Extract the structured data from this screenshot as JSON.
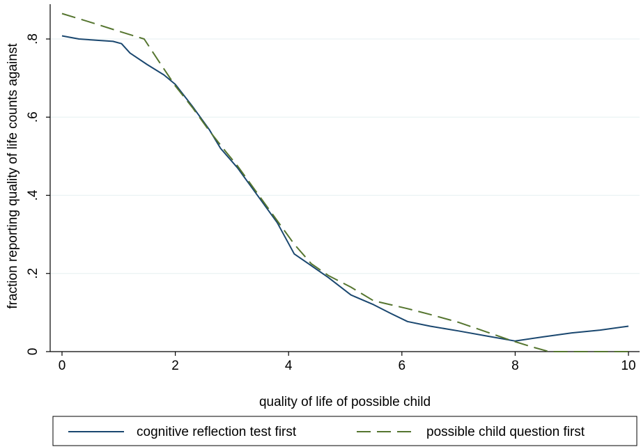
{
  "chart_data": {
    "type": "line",
    "title": "",
    "xlabel": "quality of life of possible child",
    "ylabel": "fraction reporting quality of life counts against",
    "xlim": [
      0,
      10
    ],
    "ylim": [
      0,
      0.8
    ],
    "xticks": [
      0,
      2,
      4,
      6,
      8,
      10
    ],
    "xtick_labels": [
      "0",
      "2",
      "4",
      "6",
      "8",
      "10"
    ],
    "yticks": [
      0,
      0.2,
      0.4,
      0.6,
      0.8
    ],
    "ytick_labels": [
      "0",
      ".2",
      ".4",
      ".6",
      ".8"
    ],
    "grid": "horizontal",
    "legend_position": "bottom",
    "series": [
      {
        "name": "cognitive reflection test first",
        "color": "#1a476f",
        "dash": "solid",
        "x": [
          0,
          0.3,
          0.6,
          0.9,
          1.05,
          1.2,
          1.5,
          1.8,
          2.0,
          2.3,
          2.6,
          2.8,
          3.1,
          3.5,
          3.8,
          4.1,
          4.4,
          4.7,
          5.1,
          5.5,
          5.8,
          6.1,
          6.5,
          7.0,
          7.5,
          8.0,
          8.5,
          9.0,
          9.5,
          10.0
        ],
        "y": [
          0.808,
          0.8,
          0.797,
          0.794,
          0.788,
          0.764,
          0.735,
          0.708,
          0.684,
          0.628,
          0.568,
          0.52,
          0.47,
          0.39,
          0.33,
          0.25,
          0.22,
          0.19,
          0.145,
          0.12,
          0.098,
          0.077,
          0.065,
          0.053,
          0.04,
          0.027,
          0.038,
          0.048,
          0.055,
          0.065
        ]
      },
      {
        "name": "possible child question first",
        "color": "#55752f",
        "dash": "dashed",
        "x": [
          0,
          0.5,
          1.0,
          1.45,
          1.7,
          2.0,
          2.3,
          2.6,
          2.9,
          3.1,
          3.5,
          3.8,
          4.1,
          4.4,
          4.7,
          5.1,
          5.5,
          5.8,
          6.1,
          6.5,
          7.0,
          7.5,
          7.9,
          8.3,
          8.6,
          9.0,
          9.5,
          10.0
        ],
        "y": [
          0.865,
          0.843,
          0.82,
          0.8,
          0.745,
          0.68,
          0.625,
          0.565,
          0.51,
          0.475,
          0.395,
          0.335,
          0.275,
          0.225,
          0.195,
          0.165,
          0.13,
          0.12,
          0.11,
          0.095,
          0.075,
          0.05,
          0.03,
          0.012,
          0.0,
          0.0,
          0.0,
          0.0
        ]
      }
    ]
  }
}
